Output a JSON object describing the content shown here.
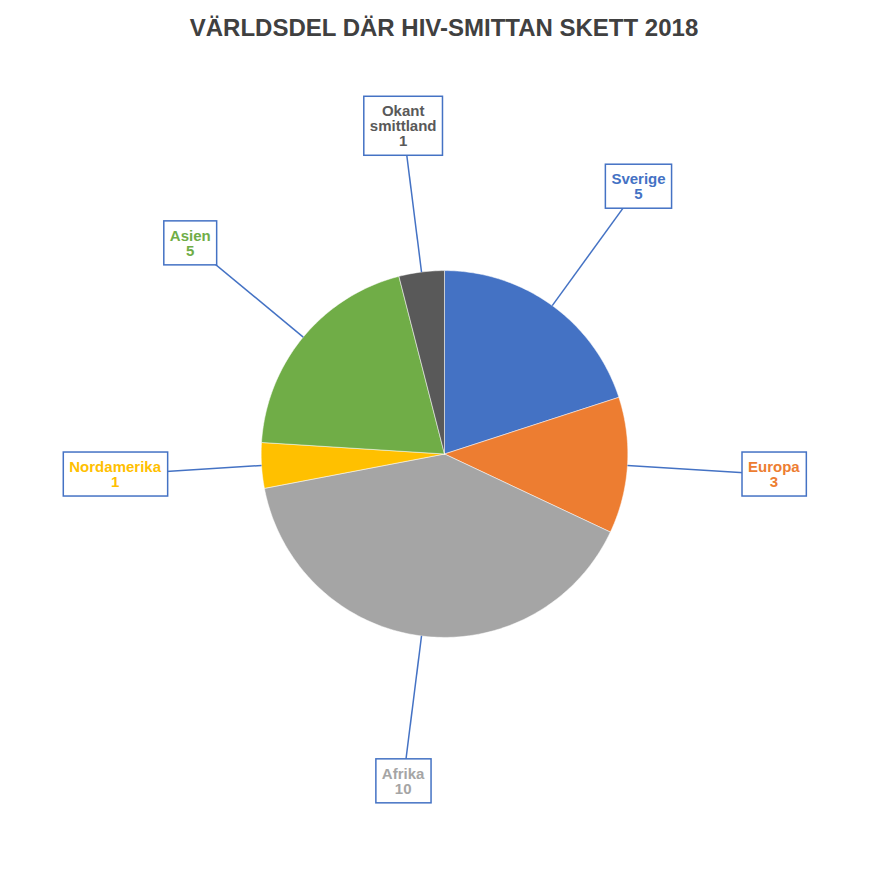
{
  "chart_data": {
    "type": "pie",
    "title": "VÄRLDSDEL DÄR HIV-SMITTAN SKETT 2018",
    "categories": [
      "Sverige",
      "Europa",
      "Afrika",
      "Nordamerika",
      "Asien",
      "Okant\nsmittland"
    ],
    "values": [
      5,
      3,
      10,
      1,
      5,
      1
    ],
    "colors": [
      "#4472C4",
      "#ED7D31",
      "#A5A5A5",
      "#FFC000",
      "#70AD47",
      "#595959"
    ],
    "data_labels": true
  }
}
